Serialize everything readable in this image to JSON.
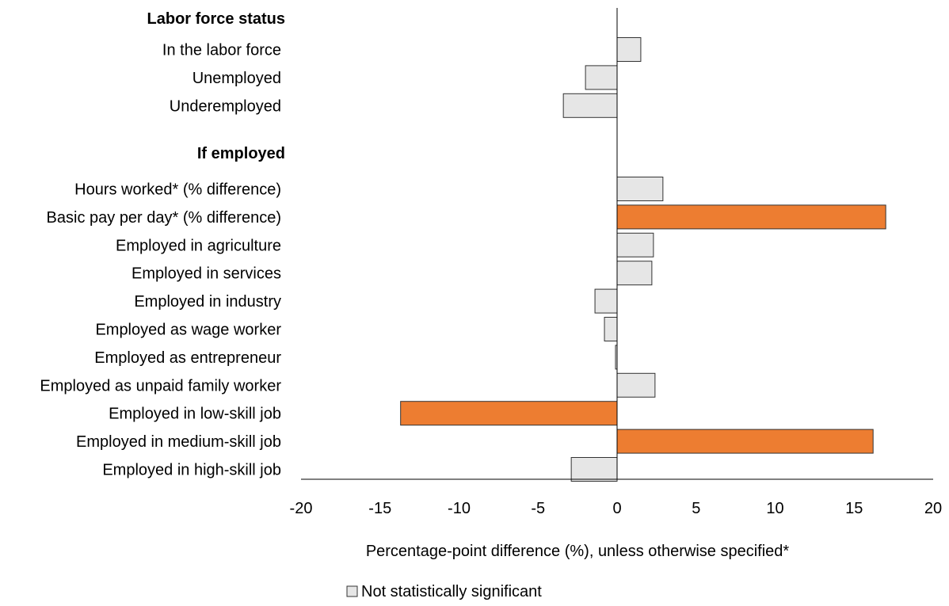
{
  "chart_data": {
    "type": "bar",
    "orientation": "horizontal",
    "groups": [
      {
        "label": "Labor force status",
        "categories": [
          "In the labor force",
          "Unemployed",
          "Underemployed"
        ],
        "values": [
          1.5,
          -2.0,
          -3.4
        ],
        "significant": [
          false,
          false,
          false
        ]
      },
      {
        "label": "If employed",
        "categories": [
          "Hours worked* (% difference)",
          "Basic pay per day* (% difference)",
          "Employed in agriculture",
          "Employed in services",
          "Employed in industry",
          "Employed as wage worker",
          "Employed as entrepreneur",
          "Employed as unpaid family worker",
          "Employed in low-skill job",
          "Employed in medium-skill job",
          "Employed in high-skill job"
        ],
        "values": [
          2.9,
          17.0,
          2.3,
          2.2,
          -1.4,
          -0.8,
          -0.1,
          2.4,
          -13.7,
          16.2,
          -2.9
        ],
        "significant": [
          false,
          true,
          false,
          false,
          false,
          false,
          false,
          false,
          true,
          true,
          false
        ]
      }
    ],
    "xlim": [
      -20,
      20
    ],
    "xticks": [
      -20,
      -15,
      -10,
      -5,
      0,
      5,
      10,
      15,
      20
    ],
    "xlabel": "Percentage-point difference (%), unless otherwise specified*",
    "legend": {
      "entries": [
        {
          "label": "Not statistically significant",
          "color": "#e6e6e6"
        }
      ],
      "placement": "bottom"
    },
    "colors": {
      "significant": "#ed7d31",
      "not_significant": "#e6e6e6",
      "outline": "#333333"
    }
  }
}
